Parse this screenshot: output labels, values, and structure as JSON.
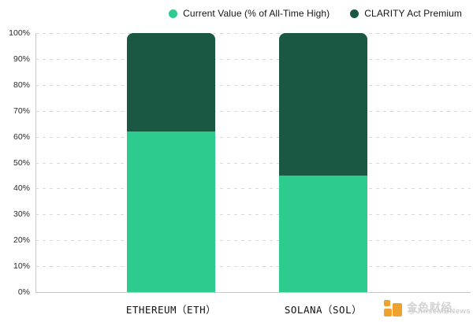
{
  "legend": {
    "items": [
      {
        "label": "Current Value (% of All-Time High)",
        "color": "#2dcb8d"
      },
      {
        "label": "CLARITY Act Premium",
        "color": "#1a5843"
      }
    ]
  },
  "chart_data": {
    "type": "bar",
    "stacked": true,
    "title": "",
    "xlabel": "",
    "ylabel": "",
    "categories": [
      "ETHEREUM（ETH）",
      "SOLANA（SOL）"
    ],
    "series": [
      {
        "name": "Current Value (% of All-Time High)",
        "color": "#2dcb8d",
        "values": [
          62,
          45
        ]
      },
      {
        "name": "CLARITY Act Premium",
        "color": "#1a5843",
        "values": [
          38,
          55
        ]
      }
    ],
    "ylim": [
      0,
      100
    ],
    "yticks": [
      "0%",
      "10%",
      "20%",
      "30%",
      "40%",
      "50%",
      "60%",
      "70%",
      "80%",
      "90%",
      "100%"
    ],
    "grid": "horizontal-dashed",
    "legend_position": "top-right"
  },
  "watermark": {
    "text_cn": "金色财经",
    "text_en": "@JinseMBNews"
  }
}
